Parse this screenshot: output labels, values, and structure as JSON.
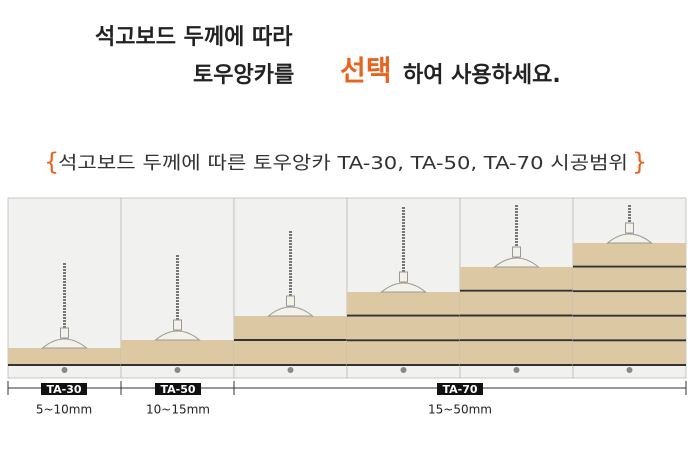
{
  "header": {
    "line1": "석고보드 두께에 따라",
    "line2_before": "토우앙카를",
    "line2_highlight": "선택",
    "line2_after": "하여 사용하세요."
  },
  "subtitle": {
    "open": "{",
    "text": "석고보드 두께에 따른 토우앙카 TA-30, TA-50, TA-70 시공범위",
    "close": "}"
  },
  "ranges": [
    {
      "model": "TA-30",
      "range": "5~10mm"
    },
    {
      "model": "TA-50",
      "range": "10~15mm"
    },
    {
      "model": "TA-70",
      "range": "15~50mm"
    }
  ]
}
